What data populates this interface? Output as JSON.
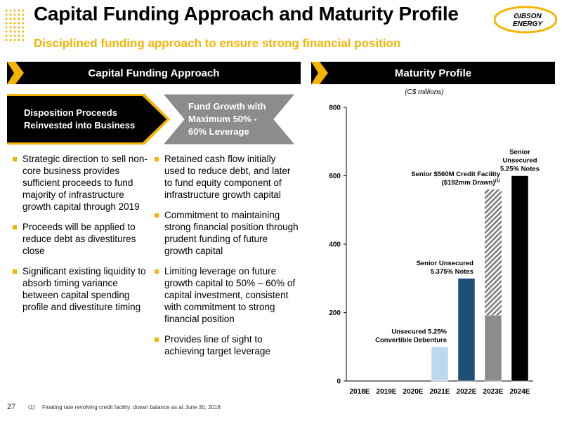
{
  "header": {
    "title": "Capital Funding Approach and Maturity Profile",
    "subtitle": "Disciplined funding approach to ensure strong financial position",
    "logo_lines": [
      "GIBSON",
      "ENERGY"
    ]
  },
  "left_section": {
    "heading": "Capital Funding Approach",
    "flow_box_1": [
      "Disposition Proceeds",
      "Reinvested into Business"
    ],
    "flow_box_2": [
      "Fund Growth with",
      "Maximum 50% -",
      "60% Leverage"
    ],
    "bullets_left": [
      "Strategic direction to sell non-core business provides sufficient proceeds to fund majority of infrastructure growth capital through 2019",
      "Proceeds will be applied to reduce debt as divestitures close",
      "Significant existing liquidity to absorb timing variance between capital spending profile and divestiture timing"
    ],
    "bullets_right": [
      "Retained cash flow initially used to reduce debt, and later to fund equity component of infrastructure growth capital",
      "Commitment to maintaining strong financial position through prudent funding of future growth capital",
      "Limiting leverage on future growth capital to 50% – 60% of capital investment, consistent with commitment to strong financial position",
      "Provides line of sight to achieving target leverage"
    ]
  },
  "right_section": {
    "heading": "Maturity Profile"
  },
  "chart_data": {
    "type": "bar",
    "unit_label": "(C$ millions)",
    "categories": [
      "2018E",
      "2019E",
      "2020E",
      "2021E",
      "2022E",
      "2023E",
      "2024E"
    ],
    "ylim": [
      0,
      800
    ],
    "yticks": [
      0,
      200,
      400,
      600,
      800
    ],
    "grid": false,
    "bars": [
      {
        "category": "2021E",
        "value": 100,
        "color": "#bdd7ee",
        "pattern": "solid"
      },
      {
        "category": "2022E",
        "value": 300,
        "color": "#1f4e79",
        "pattern": "solid"
      },
      {
        "category": "2023E",
        "value": 192,
        "color": "#8c8c8c",
        "pattern": "solid"
      },
      {
        "category": "2023E",
        "base": 192,
        "value": 368,
        "color": "#7f7f7f",
        "pattern": "hatched"
      },
      {
        "category": "2024E",
        "value": 600,
        "color": "#000000",
        "pattern": "solid"
      }
    ],
    "annotations": [
      {
        "category": "2021E",
        "y": 100,
        "lines": [
          "Unsecured 5.25%",
          "Convertible Debenture"
        ],
        "anchor": "end"
      },
      {
        "category": "2022E",
        "y": 300,
        "lines": [
          "Senior Unsecured",
          "5.375% Notes"
        ],
        "anchor": "end"
      },
      {
        "category": "2023E",
        "y": 560,
        "lines": [
          "Senior $560M Credit Facility",
          "($192mm Drawn)"
        ],
        "anchor": "end",
        "superscript": "(1)"
      },
      {
        "category": "2024E",
        "y": 600,
        "lines": [
          "Senior",
          "Unsecured",
          "5.25% Notes"
        ],
        "anchor": "middle"
      }
    ]
  },
  "footer": {
    "page_number": "27",
    "note_marker": "(1)",
    "note": "Floating rate revolving credit facility; drawn balance as at June 30, 2018"
  }
}
